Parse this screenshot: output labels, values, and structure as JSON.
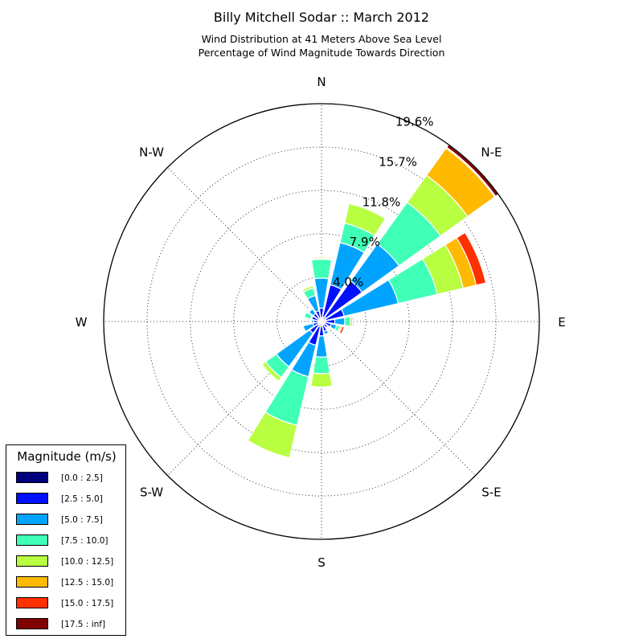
{
  "title": "Billy Mitchell Sodar :: March 2012",
  "subtitle_line1": "Wind Distribution at 41 Meters Above Sea Level",
  "subtitle_line2": "Percentage of Wind Magnitude Towards Direction",
  "legend": {
    "title": "Magnitude (m/s)",
    "items": [
      {
        "label": "[0.0 : 2.5]",
        "color": "#00007f"
      },
      {
        "label": "[2.5 : 5.0]",
        "color": "#0010ff"
      },
      {
        "label": "[5.0 : 7.5]",
        "color": "#00a4ff"
      },
      {
        "label": "[7.5 : 10.0]",
        "color": "#40ffb7"
      },
      {
        "label": "[10.0 : 12.5]",
        "color": "#b7ff40"
      },
      {
        "label": "[12.5 : 15.0]",
        "color": "#ffb900"
      },
      {
        "label": "[15.0 : 17.5]",
        "color": "#ff3000"
      },
      {
        "label": "[17.5 : inf]",
        "color": "#7f0000"
      }
    ]
  },
  "chart_data": {
    "type": "windrose",
    "title": "Billy Mitchell Sodar :: March 2012",
    "subtitle": "Wind Distribution at 41 Meters Above Sea Level / Percentage of Wind Magnitude Towards Direction",
    "direction_labels": [
      "N",
      "N-E",
      "E",
      "S-E",
      "S",
      "S-W",
      "W",
      "N-W"
    ],
    "radial_tick_labels": [
      "4.0%",
      "7.9%",
      "11.8%",
      "15.7%",
      "19.6%"
    ],
    "radial_ticks": [
      4.0,
      7.9,
      11.8,
      15.7,
      19.6
    ],
    "rmax": 19.6,
    "grid": true,
    "legend_position": "lower-left",
    "bins": [
      "[0.0 : 2.5]",
      "[2.5 : 5.0]",
      "[5.0 : 7.5]",
      "[7.5 : 10.0]",
      "[10.0 : 12.5]",
      "[12.5 : 15.0]",
      "[15.0 : 17.5]",
      "[17.5 : inf]"
    ],
    "directions_deg": [
      0,
      22.5,
      45,
      67.5,
      90,
      112.5,
      135,
      157.5,
      180,
      202.5,
      225,
      247.5,
      270,
      292.5,
      315,
      337.5
    ],
    "cumulative": [
      [
        0.3,
        1.2,
        3.9,
        5.6,
        5.7,
        5.8,
        5.8,
        5.8
      ],
      [
        0.4,
        3.4,
        7.3,
        9.1,
        10.9,
        10.9,
        10.9,
        10.9
      ],
      [
        0.5,
        4.5,
        8.6,
        13.2,
        16.2,
        19.2,
        19.3,
        19.6
      ],
      [
        0.4,
        2.1,
        7.1,
        10.7,
        13.1,
        14.3,
        15.2,
        15.2
      ],
      [
        0.4,
        1.2,
        2.1,
        2.6,
        2.8,
        2.8,
        2.9,
        2.9
      ],
      [
        0.3,
        0.9,
        1.4,
        1.7,
        1.85,
        1.9,
        2.1,
        2.1
      ],
      [
        0.3,
        0.7,
        0.8,
        0.9,
        1.0,
        1.0,
        1.0,
        1.0
      ],
      [
        0.3,
        0.9,
        1.2,
        1.3,
        1.35,
        1.35,
        1.35,
        1.35
      ],
      [
        0.4,
        1.3,
        3.2,
        4.7,
        5.9,
        5.9,
        5.9,
        5.9
      ],
      [
        0.5,
        2.2,
        5.1,
        9.6,
        12.6,
        12.6,
        12.6,
        12.6
      ],
      [
        0.4,
        1.3,
        5.0,
        6.2,
        6.6,
        6.6,
        6.6,
        6.6
      ],
      [
        0.3,
        0.8,
        1.7,
        1.8,
        1.8,
        1.8,
        1.8,
        1.8
      ],
      [
        0.3,
        0.7,
        0.9,
        1.0,
        1.0,
        1.0,
        1.0,
        1.0
      ],
      [
        0.3,
        0.9,
        1.0,
        1.6,
        1.6,
        1.6,
        1.6,
        1.6
      ],
      [
        0.3,
        0.9,
        1.4,
        1.5,
        1.5,
        1.5,
        1.5,
        1.5
      ],
      [
        0.3,
        1.0,
        2.4,
        3.1,
        3.3,
        3.3,
        3.3,
        3.3
      ]
    ]
  }
}
